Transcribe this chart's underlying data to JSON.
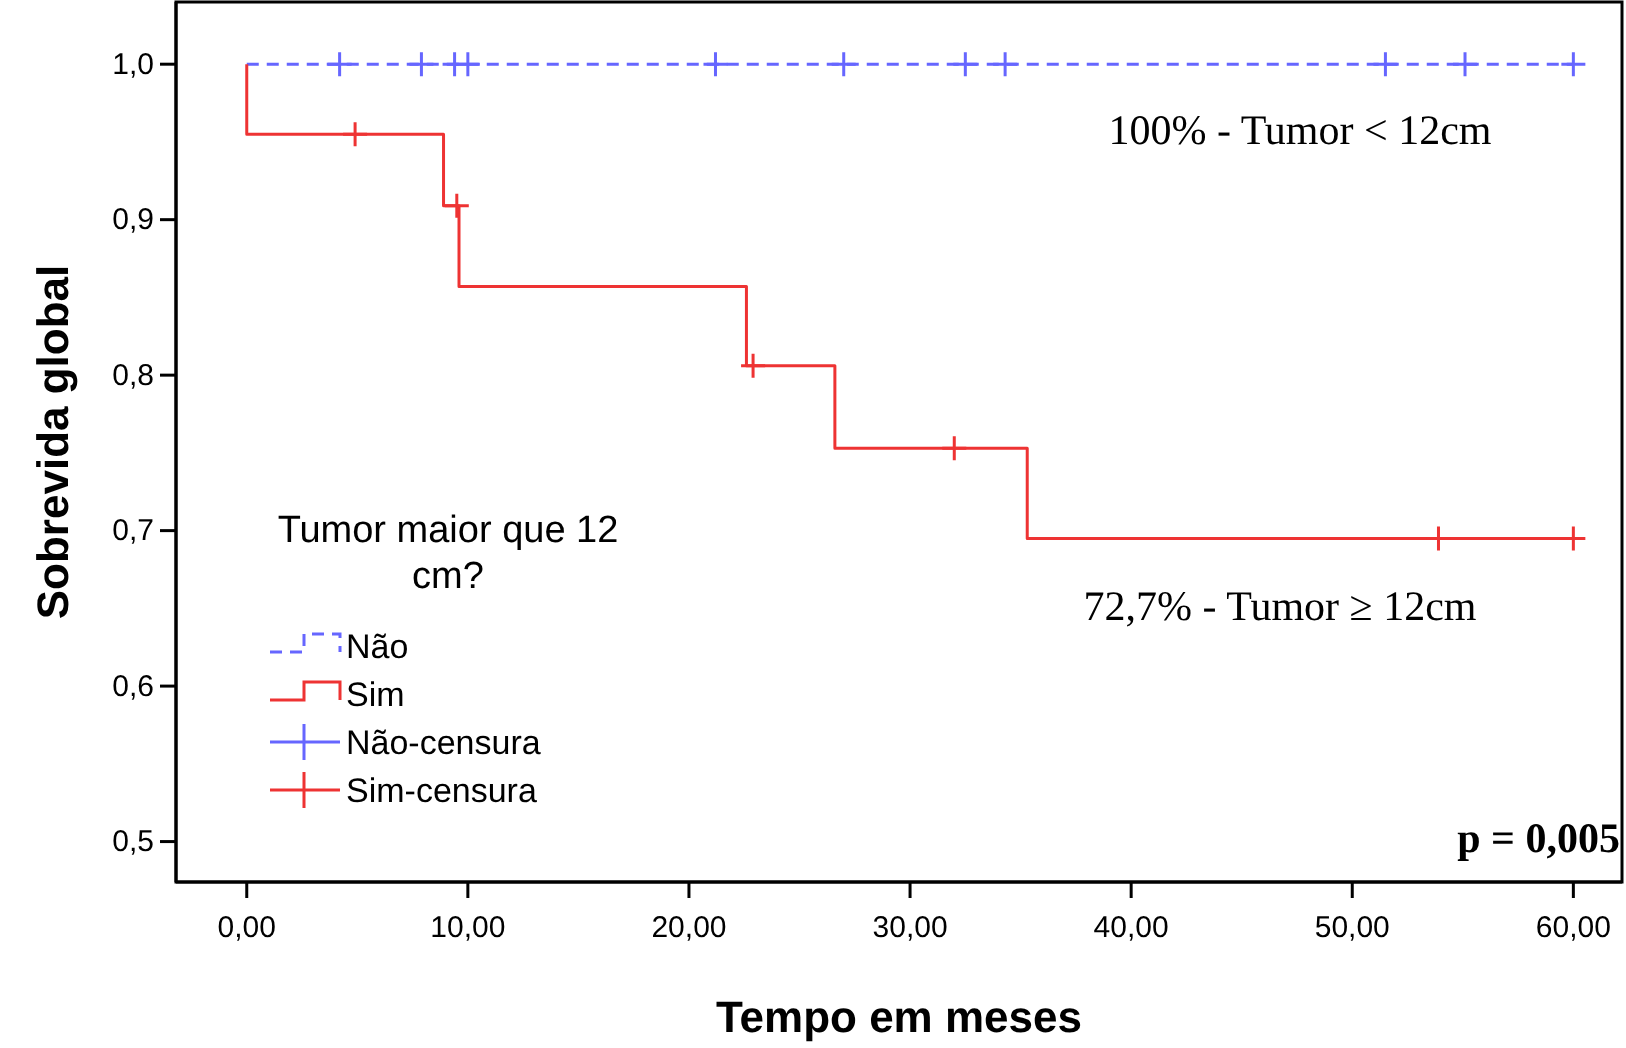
{
  "chart_data": {
    "type": "step",
    "xlabel": "Tempo em meses",
    "ylabel": "Sobrevida global",
    "legend_title": "Tumor maior que 12 cm?",
    "legend": "bottom left",
    "grid": false,
    "xlim": [
      -3.2,
      62.2
    ],
    "ylim": [
      0.474,
      1.04
    ],
    "xticks": [
      {
        "value": 0,
        "label": "0,00"
      },
      {
        "value": 10,
        "label": "10,00"
      },
      {
        "value": 20,
        "label": "20,00"
      },
      {
        "value": 30,
        "label": "30,00"
      },
      {
        "value": 40,
        "label": "40,00"
      },
      {
        "value": 50,
        "label": "50,00"
      },
      {
        "value": 60,
        "label": "60,00"
      }
    ],
    "yticks": [
      {
        "value": 0.5,
        "label": "0,5"
      },
      {
        "value": 0.6,
        "label": "0,6"
      },
      {
        "value": 0.7,
        "label": "0,7"
      },
      {
        "value": 0.8,
        "label": "0,8"
      },
      {
        "value": 0.9,
        "label": "0,9"
      },
      {
        "value": 1,
        "label": "1,0"
      }
    ],
    "series": [
      {
        "name": "Não",
        "color": "#6666ff",
        "line_style": "dashed",
        "marker": "none",
        "x": [
          0,
          60
        ],
        "values": [
          1,
          1
        ]
      },
      {
        "name": "Sim",
        "color": "#ee3333",
        "line_style": "solid",
        "marker": "none",
        "x": [
          0,
          0,
          8.9,
          9.6,
          22.6,
          26.6,
          35.3,
          60
        ],
        "values": [
          1,
          0.955,
          0.909,
          0.857,
          0.806,
          0.753,
          0.695,
          0.695
        ]
      },
      {
        "name": "Não-censura",
        "type": "scatter",
        "color": "#6666ff",
        "marker": "cross",
        "x": [
          4.2,
          7.9,
          9.4,
          10,
          21.2,
          27,
          32.5,
          34.3,
          51.5,
          55.1,
          60
        ],
        "values": [
          1,
          1,
          1,
          1,
          1,
          1,
          1,
          1,
          1,
          1,
          1
        ]
      },
      {
        "name": "Sim-censura",
        "type": "scatter",
        "color": "#ee3333",
        "marker": "cross",
        "x": [
          4.9,
          9.5,
          22.9,
          32,
          53.9,
          60
        ],
        "values": [
          0.955,
          0.909,
          0.806,
          0.753,
          0.695,
          0.695
        ]
      }
    ],
    "annotations": [
      "100% - Tumor < 12cm",
      "72,7% - Tumor  ≥ 12cm",
      "p = 0,005"
    ]
  }
}
